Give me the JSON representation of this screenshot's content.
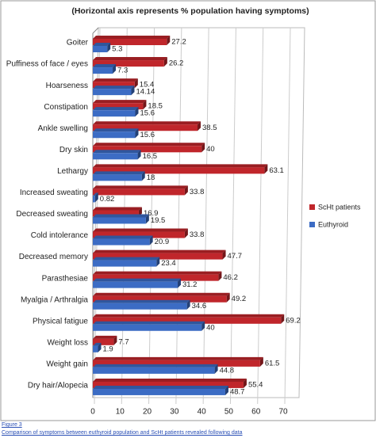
{
  "chart_data": {
    "type": "bar3d",
    "orientation": "horizontal",
    "title": "(Horizontal axis represents % population having symptoms)",
    "categories": [
      "Goiter",
      "Puffiness of face / eyes",
      "Hoarseness",
      "Constipation",
      "Ankle swelling",
      "Dry skin",
      "Lethargy",
      "Increased sweating",
      "Decreased sweating",
      "Cold intolerance",
      "Decreased memory",
      "Parasthesiae",
      "Myalgia / Arthralgia",
      "Physical fatigue",
      "Weight loss",
      "Weight gain",
      "Dry hair/Alopecia"
    ],
    "series": [
      {
        "name": "ScHt patients",
        "color": "#c0262b",
        "values": [
          27.2,
          26.2,
          15.4,
          18.5,
          38.5,
          40,
          63.1,
          33.8,
          16.9,
          33.8,
          47.7,
          46.2,
          49.2,
          69.2,
          7.7,
          61.5,
          55.4
        ]
      },
      {
        "name": "Euthyroid",
        "color": "#3c6cc4",
        "values": [
          5.3,
          7.3,
          14.14,
          15.6,
          15.6,
          16.5,
          18,
          0.82,
          19.5,
          20.9,
          23.4,
          31.2,
          34.6,
          40,
          1.9,
          44.8,
          48.7
        ]
      }
    ],
    "xlim": [
      0,
      70
    ],
    "xticks": [
      0,
      10,
      20,
      30,
      40,
      50,
      60,
      70
    ],
    "grid": true,
    "legend": "right"
  },
  "caption": {
    "label": "Figure 3",
    "text": "Comparison of symptoms between euthyroid population and ScHt patients revealed following data"
  }
}
